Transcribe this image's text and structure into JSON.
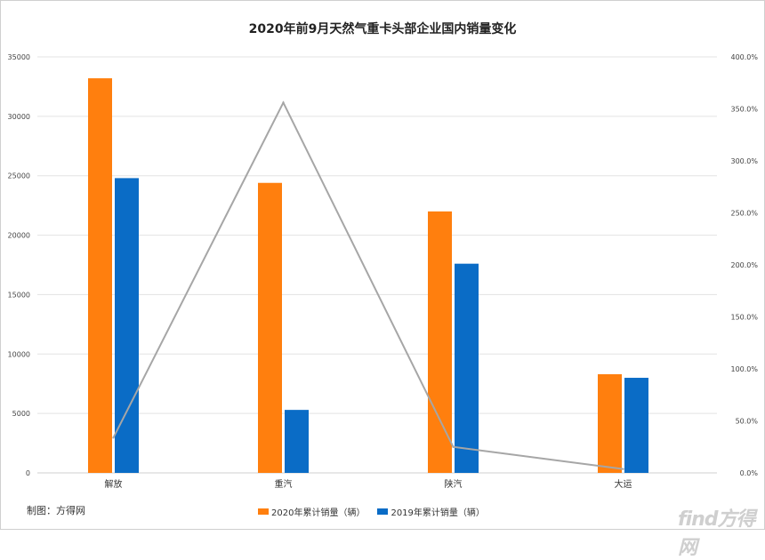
{
  "chart_data": {
    "type": "bar",
    "title": "2020年前9月天然气重卡头部企业国内销量变化",
    "categories": [
      "解放",
      "重汽",
      "陕汽",
      "大运"
    ],
    "series": [
      {
        "name": "2020年累计销量（辆）",
        "values": [
          33200,
          24400,
          22000,
          8300
        ],
        "color": "#FF7F0E"
      },
      {
        "name": "2019年累计销量（辆）",
        "values": [
          24800,
          5300,
          17600,
          8000
        ],
        "color": "#0A6CC6"
      }
    ],
    "line_series": {
      "values": [
        33.9,
        356.0,
        25.0,
        3.7
      ],
      "color": "#A6A6A6",
      "axis": "right"
    },
    "ylim_left": [
      0,
      35000
    ],
    "yticks_left": [
      "0",
      "5000",
      "10000",
      "15000",
      "20000",
      "25000",
      "30000",
      "35000"
    ],
    "ylim_right": [
      0,
      400
    ],
    "yticks_right": [
      "0.0%",
      "50.0%",
      "100.0%",
      "150.0%",
      "200.0%",
      "250.0%",
      "300.0%",
      "350.0%",
      "400.0%"
    ],
    "grid": true,
    "legend_position": "bottom"
  },
  "credit": "制图：方得网",
  "watermark": "find方得网"
}
